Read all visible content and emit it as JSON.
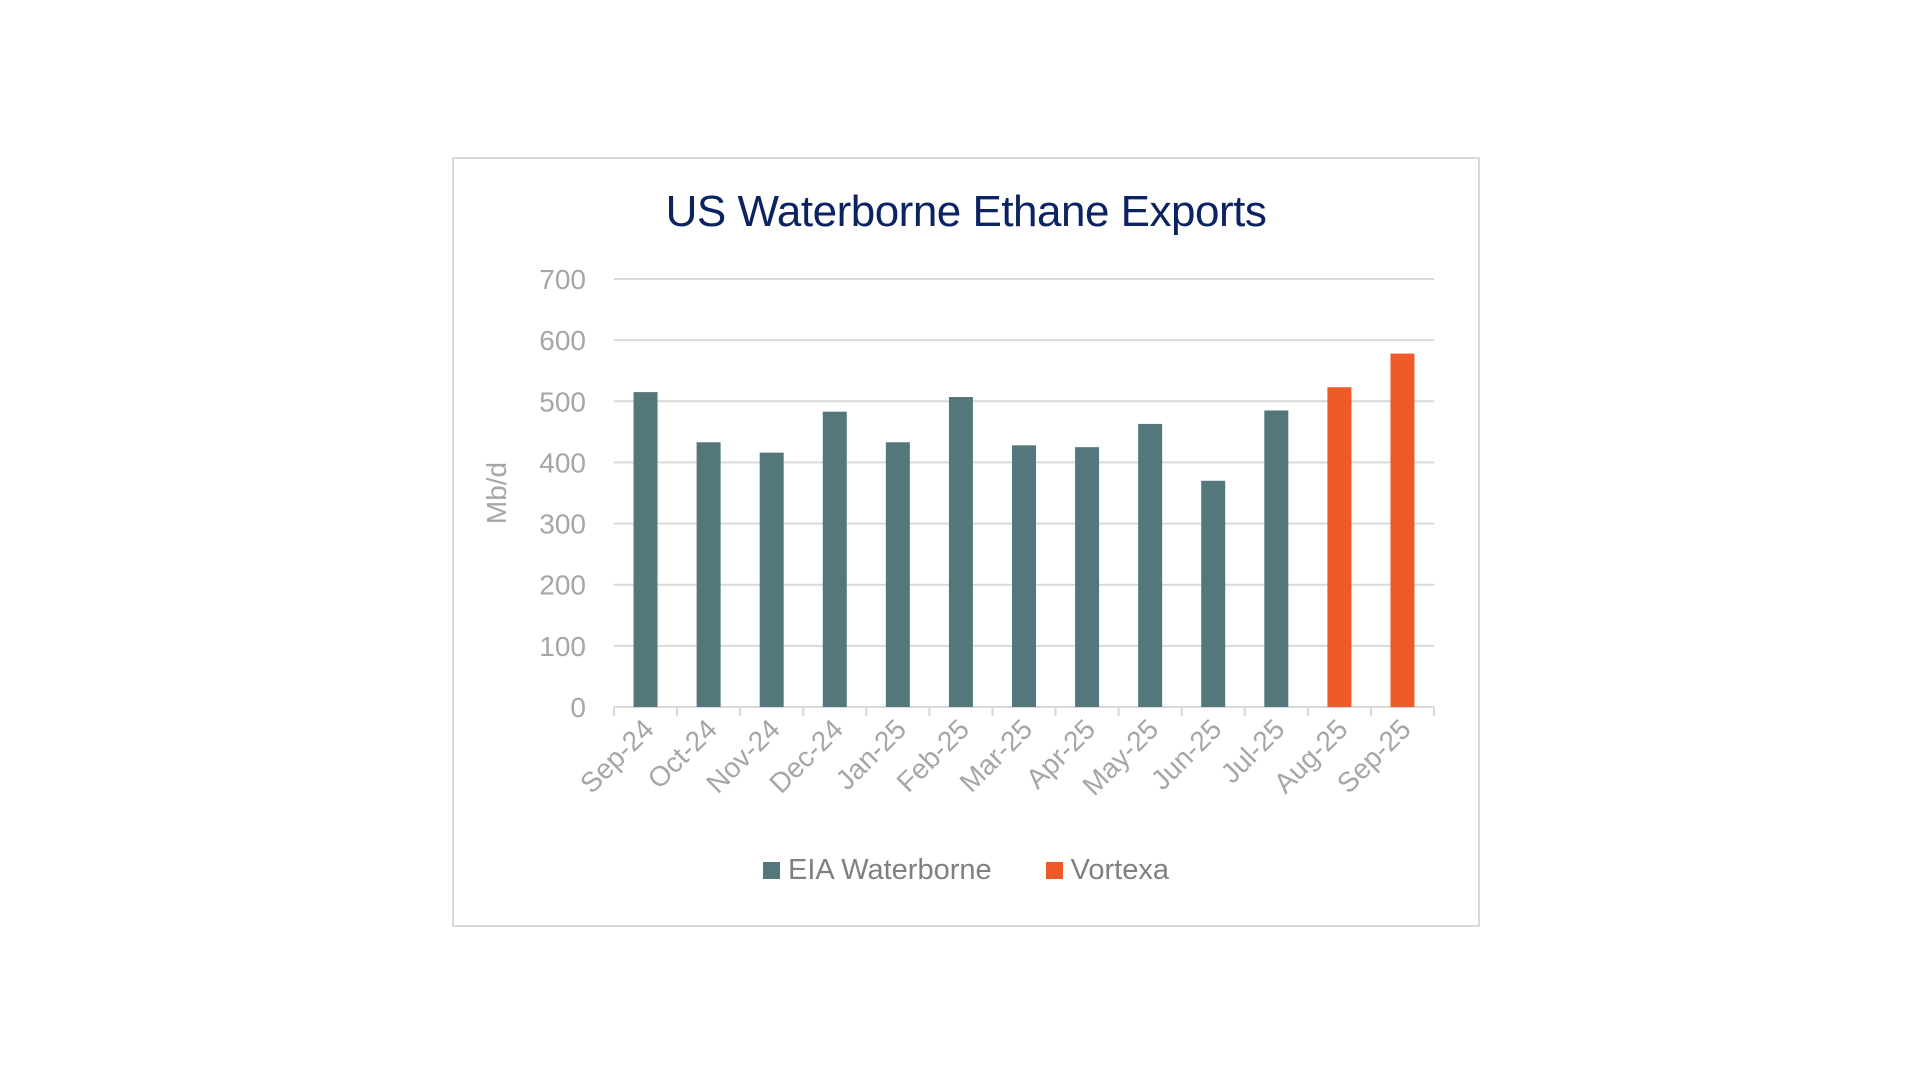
{
  "chart_data": {
    "type": "bar",
    "title": "US Waterborne Ethane Exports",
    "ylabel": "Mb/d",
    "xlabel": "",
    "ylim": [
      0,
      700
    ],
    "yticks": [
      "0",
      "100",
      "200",
      "300",
      "400",
      "500",
      "600",
      "700"
    ],
    "grid": true,
    "legend_position": "bottom",
    "categories": [
      "Sep-24",
      "Oct-24",
      "Nov-24",
      "Dec-24",
      "Jan-25",
      "Feb-25",
      "Mar-25",
      "Apr-25",
      "May-25",
      "Jun-25",
      "Jul-25",
      "Aug-25",
      "Sep-25"
    ],
    "series": [
      {
        "name": "EIA Waterborne",
        "color": "#53777a",
        "values": [
          515,
          433,
          416,
          483,
          433,
          507,
          428,
          425,
          463,
          370,
          485,
          null,
          null
        ]
      },
      {
        "name": "Vortexa",
        "color": "#f05a28",
        "values": [
          null,
          null,
          null,
          null,
          null,
          null,
          null,
          null,
          null,
          null,
          null,
          523,
          578
        ]
      }
    ]
  }
}
